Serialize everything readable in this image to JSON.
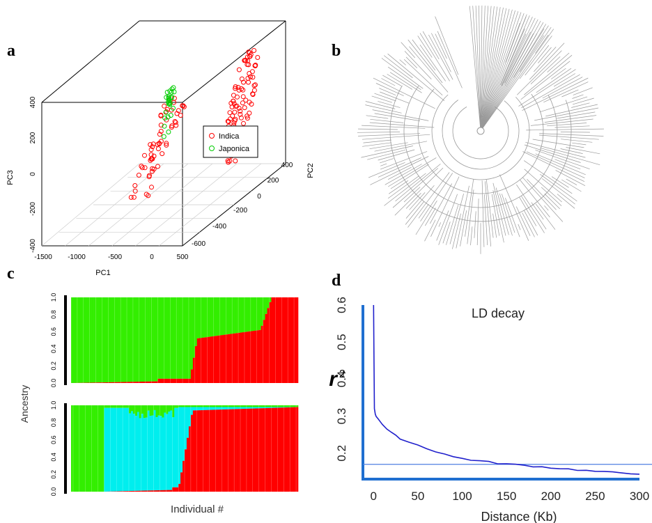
{
  "panel_labels": {
    "a": "a",
    "b": "b",
    "c": "c",
    "d": "d"
  },
  "colors": {
    "indica": "#ff0000",
    "japonica": "#00cc00",
    "green": "#33ee00",
    "cyan": "#00eeee",
    "red": "#ff0000",
    "ld_line": "#2020cc",
    "axis_blue": "#1f6fd0",
    "threshold": "#4f7fe0"
  },
  "chart_data": [
    {
      "type": "scatter",
      "panel": "a",
      "title": "",
      "xlabel": "PC1",
      "ylabel": "PC3",
      "zlabel": "PC2",
      "x_ticks": [
        "-1500",
        "-1000",
        "-500",
        "0",
        "500"
      ],
      "y_ticks": [
        "-400",
        "-200",
        "0",
        "200",
        "400"
      ],
      "z_ticks": [
        "-600",
        "-400",
        "-200",
        "0",
        "200",
        "400"
      ],
      "legend": {
        "placement": "right",
        "entries": [
          "Indica",
          "Japonica"
        ]
      },
      "series": [
        {
          "name": "Indica",
          "color": "#ff0000"
        },
        {
          "name": "Japonica",
          "color": "#00cc00"
        }
      ]
    },
    {
      "type": "tree",
      "panel": "b",
      "layout": "circular",
      "color": "#999999"
    },
    {
      "type": "bar",
      "panel": "c",
      "ylabel": "Ancestry",
      "xlabel": "Individual #",
      "y_ticks": [
        "0.0",
        "0.2",
        "0.4",
        "0.6",
        "0.8",
        "1.0"
      ],
      "stacked": true,
      "subplots": [
        {
          "K": 2,
          "components": [
            "green",
            "red"
          ]
        },
        {
          "K": 3,
          "components": [
            "green",
            "cyan",
            "red"
          ]
        }
      ]
    },
    {
      "type": "line",
      "panel": "d",
      "title": "LD decay",
      "xlabel": "Distance  (Kb)",
      "ylabel_main": "r",
      "ylabel_sup": "2",
      "xlim": [
        -12,
        300
      ],
      "ylim": [
        0.13,
        0.6
      ],
      "x_ticks": [
        0,
        50,
        100,
        150,
        200,
        250,
        300
      ],
      "y_ticks": [
        0.2,
        0.3,
        0.4,
        0.5,
        0.6
      ],
      "threshold": 0.17,
      "series": [
        {
          "name": "",
          "x": [
            0,
            0.5,
            1,
            2,
            3,
            5,
            8,
            10,
            15,
            20,
            25,
            30,
            40,
            50,
            60,
            70,
            80,
            90,
            100,
            110,
            120,
            130,
            140,
            150,
            160,
            170,
            180,
            190,
            200,
            210,
            220,
            230,
            240,
            250,
            260,
            270,
            280,
            290,
            300
          ],
          "y": [
            0.6,
            0.45,
            0.32,
            0.305,
            0.3,
            0.294,
            0.285,
            0.278,
            0.265,
            0.255,
            0.247,
            0.24,
            0.23,
            0.222,
            0.213,
            0.205,
            0.198,
            0.19,
            0.186,
            0.182,
            0.179,
            0.176,
            0.173,
            0.171,
            0.169,
            0.167,
            0.165,
            0.163,
            0.161,
            0.159,
            0.157,
            0.155,
            0.153,
            0.151,
            0.149,
            0.148,
            0.147,
            0.146,
            0.145
          ]
        }
      ]
    }
  ]
}
